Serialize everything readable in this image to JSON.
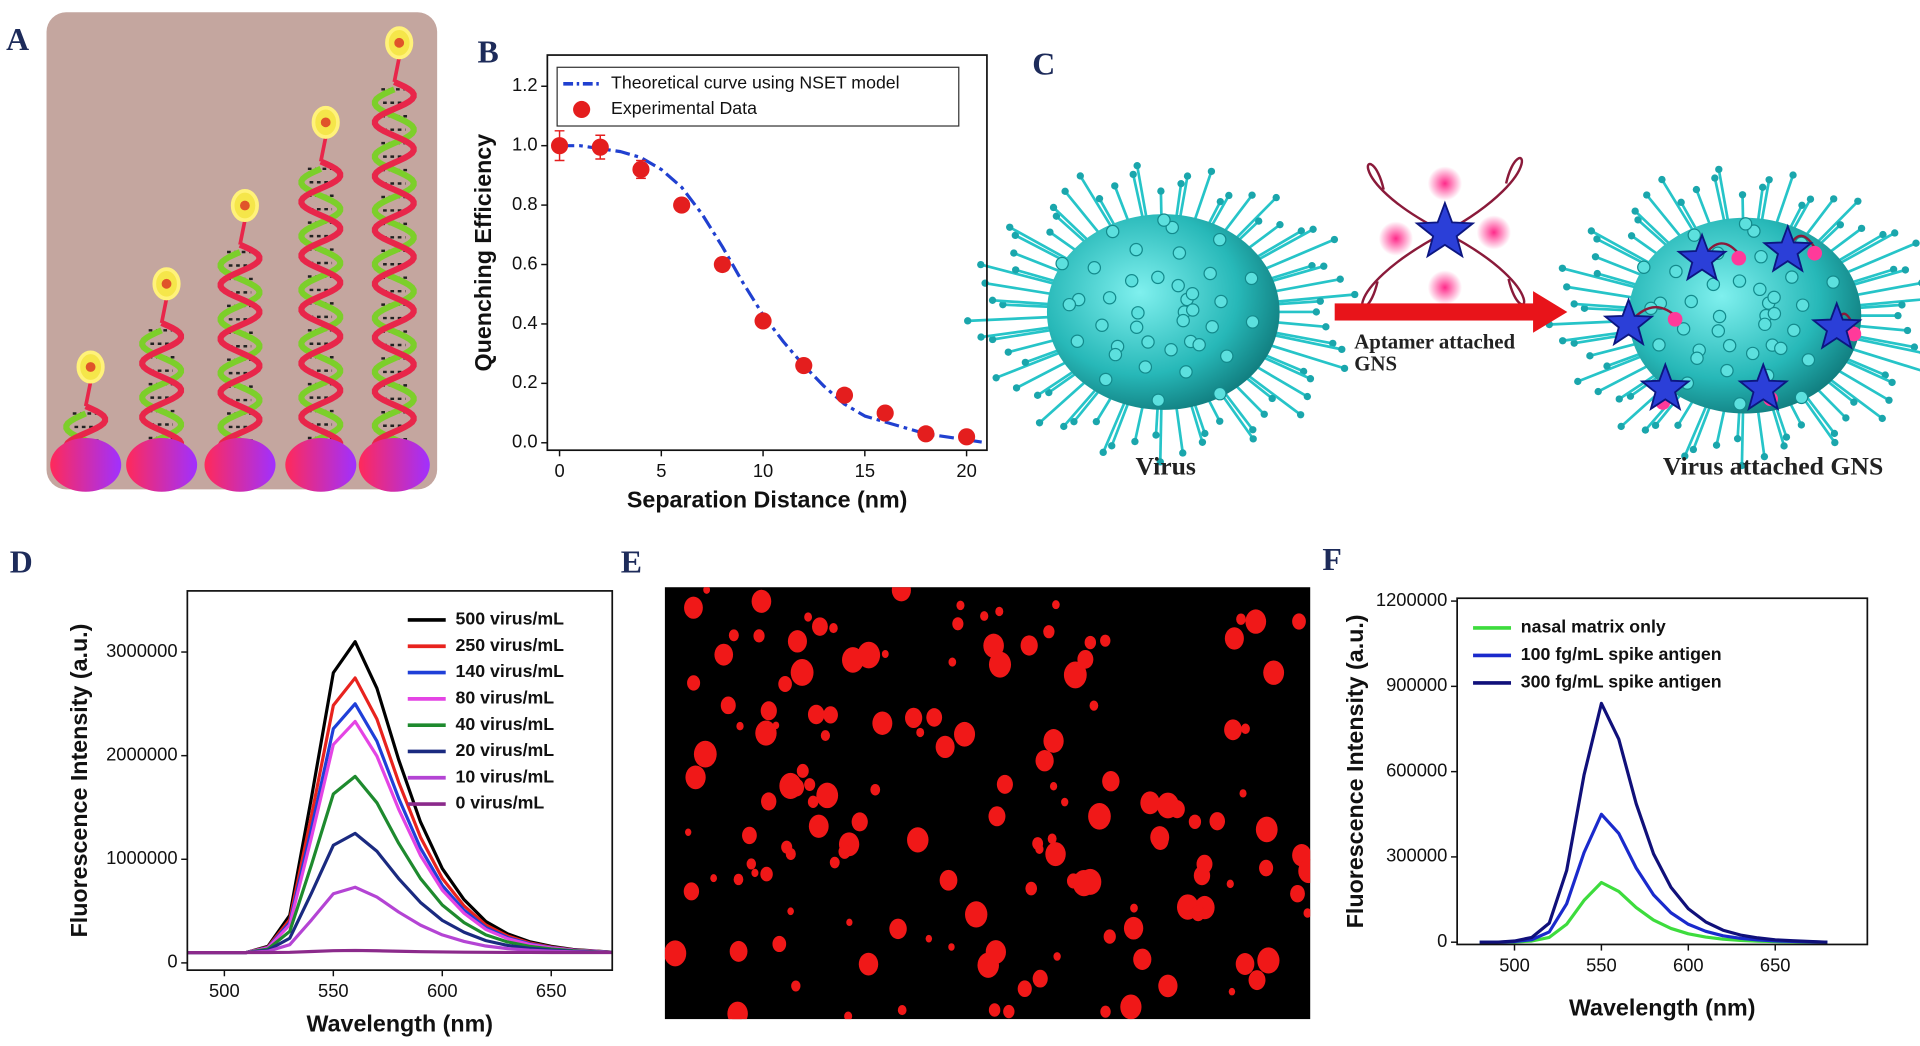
{
  "panels": [
    "A",
    "B",
    "C",
    "D",
    "E",
    "F"
  ],
  "diagram_c": {
    "left_label": "Virus",
    "arrow_label": [
      "Aptamer attached",
      "GNS"
    ],
    "right_label": "Virus attached GNS"
  },
  "chart_data": [
    {
      "type": "line",
      "xlabel": "Separation Distance (nm)",
      "ylabel": "Quenching Efficiency",
      "xlim": [
        -0.6,
        21
      ],
      "xticks": [
        0,
        5,
        10,
        15,
        20
      ],
      "ylim": [
        -0.025,
        1.305
      ],
      "yticks": [
        {
          "value": 0,
          "label": "0.0"
        },
        0.2,
        0.4,
        0.6,
        0.8,
        {
          "value": 1,
          "label": "1.0"
        },
        1.2
      ],
      "legend": "upper left",
      "legend_frame": true,
      "series": [
        {
          "name": "Theoretical curve using NSET model",
          "color": "#2040d0",
          "line_style": "dashdot",
          "x": [
            0,
            1,
            2,
            3,
            4,
            5,
            6,
            7,
            8,
            9,
            10,
            11,
            12,
            13,
            14,
            15,
            16,
            17,
            18,
            19,
            20,
            21
          ],
          "values": [
            1.0,
            1.0,
            0.99,
            0.98,
            0.96,
            0.92,
            0.86,
            0.77,
            0.66,
            0.54,
            0.43,
            0.34,
            0.26,
            0.19,
            0.13,
            0.09,
            0.07,
            0.05,
            0.03,
            0.02,
            0.01,
            0.0
          ]
        },
        {
          "name": "Experimental Data",
          "color": "#e41e1e",
          "marker": "circle",
          "x": [
            0,
            2,
            4,
            6,
            8,
            10,
            12,
            14,
            16,
            18,
            20
          ],
          "values": [
            1.0,
            0.995,
            0.92,
            0.8,
            0.6,
            0.41,
            0.26,
            0.16,
            0.1,
            0.03,
            0.02
          ],
          "errors": [
            0.05,
            0.04,
            0.03,
            0.02,
            0.02,
            0.02,
            0.02,
            0.02,
            0.02,
            0.02,
            0.02
          ]
        }
      ]
    },
    {
      "type": "line",
      "xlabel": "Wavelength (nm)",
      "ylabel": "Fluorescence Intensity (a.u.)",
      "xlim": [
        483,
        678
      ],
      "xticks": [
        500,
        550,
        600,
        650
      ],
      "ylim": [
        -70000,
        3590000
      ],
      "yticks": [
        0,
        1000000,
        2000000,
        3000000
      ],
      "legend": "upper right",
      "legend_frame": false,
      "x": [
        480,
        490,
        500,
        510,
        520,
        530,
        540,
        550,
        560,
        570,
        580,
        590,
        600,
        610,
        620,
        630,
        640,
        650,
        660,
        670,
        680
      ],
      "series": [
        {
          "name": "500 virus/mL",
          "color": "#000000",
          "values": [
            100000,
            100000,
            100000,
            100000,
            160000,
            460000,
            1600000,
            2800000,
            3100000,
            2650000,
            1960000,
            1360000,
            910000,
            610000,
            400000,
            280000,
            205000,
            160000,
            130000,
            115000,
            100000
          ]
        },
        {
          "name": "250 virus/mL",
          "color": "#e8231e",
          "values": [
            100000,
            100000,
            100000,
            100000,
            153000,
            418000,
            1425000,
            2485000,
            2750000,
            2352500,
            1743000,
            1213000,
            815500,
            550500,
            365000,
            259000,
            192750,
            153000,
            126500,
            113250,
            100000
          ]
        },
        {
          "name": "140 virus/mL",
          "color": "#1f3fd8",
          "values": [
            100000,
            100000,
            100000,
            100000,
            148000,
            388000,
            1300000,
            2260000,
            2500000,
            2140000,
            1588000,
            1108000,
            748000,
            508000,
            340000,
            244000,
            184000,
            148000,
            124000,
            112000,
            100000
          ]
        },
        {
          "name": "80 virus/mL",
          "color": "#e444e4",
          "values": [
            100000,
            100000,
            100000,
            100000,
            144600,
            367600,
            1215000,
            2107000,
            2330000,
            1995500,
            1482600,
            1036600,
            702100,
            479100,
            323000,
            233800,
            178050,
            144600,
            122300,
            111150,
            100000
          ]
        },
        {
          "name": "40 virus/mL",
          "color": "#1e8a2e",
          "values": [
            100000,
            100000,
            100000,
            100000,
            134000,
            304000,
            950000,
            1630000,
            1800000,
            1545000,
            1154000,
            814000,
            559000,
            389000,
            270000,
            202000,
            159500,
            134000,
            117000,
            108500,
            100000
          ]
        },
        {
          "name": "20 virus/mL",
          "color": "#1a2a80",
          "values": [
            100000,
            100000,
            100000,
            100000,
            123000,
            238000,
            675000,
            1135000,
            1250000,
            1077500,
            813000,
            583000,
            410500,
            295500,
            215000,
            169000,
            140250,
            123000,
            111500,
            105750,
            100000
          ]
        },
        {
          "name": "10 virus/mL",
          "color": "#b444d4",
          "values": [
            100000,
            100000,
            100000,
            100000,
            112600,
            175600,
            415000,
            667000,
            730000,
            635500,
            490600,
            364600,
            270100,
            207100,
            163000,
            137800,
            122050,
            112600,
            106300,
            103150,
            100000
          ]
        },
        {
          "name": "0 virus/mL",
          "color": "#8b2a8b",
          "values": [
            100000,
            100000,
            100000,
            100000,
            100400,
            102400,
            110000,
            118000,
            120000,
            117000,
            112400,
            108400,
            105400,
            103400,
            102000,
            101200,
            100700,
            100400,
            100200,
            100100,
            100000
          ]
        }
      ]
    },
    {
      "type": "line",
      "xlabel": "Wavelength (nm)",
      "ylabel": "Fluorescence Intensity (a.u.)",
      "xlim": [
        467,
        703
      ],
      "xticks": [
        500,
        550,
        600,
        650
      ],
      "ylim": [
        -8000,
        1210000
      ],
      "yticks": [
        0,
        300000,
        600000,
        900000,
        1200000
      ],
      "legend": "upper left",
      "legend_frame": false,
      "x": [
        480,
        490,
        500,
        510,
        520,
        530,
        540,
        550,
        560,
        570,
        580,
        590,
        600,
        610,
        620,
        630,
        640,
        650,
        660,
        670,
        680
      ],
      "series": [
        {
          "name": "nasal matrix only",
          "color": "#3ddc3d",
          "values": [
            0,
            0,
            1050,
            4200,
            16800,
            63000,
            147000,
            210000,
            178500,
            121800,
            77700,
            48300,
            29400,
            17850,
            10500,
            6300,
            3780,
            2100,
            1260,
            630,
            0
          ]
        },
        {
          "name": "100 fg/mL spike antigen",
          "color": "#1a2acc",
          "values": [
            0,
            0,
            2250,
            9000,
            36000,
            135000,
            315000,
            450000,
            382500,
            261000,
            166500,
            103500,
            63000,
            38250,
            22500,
            13500,
            8100,
            4500,
            2700,
            1350,
            0
          ]
        },
        {
          "name": "300 fg/mL spike antigen",
          "color": "#10107a",
          "values": [
            0,
            0,
            4200,
            16800,
            67200,
            252000,
            588000,
            840000,
            714000,
            487200,
            310800,
            193200,
            117600,
            71400,
            42000,
            25200,
            15120,
            8400,
            5040,
            2520,
            0
          ]
        }
      ]
    }
  ]
}
